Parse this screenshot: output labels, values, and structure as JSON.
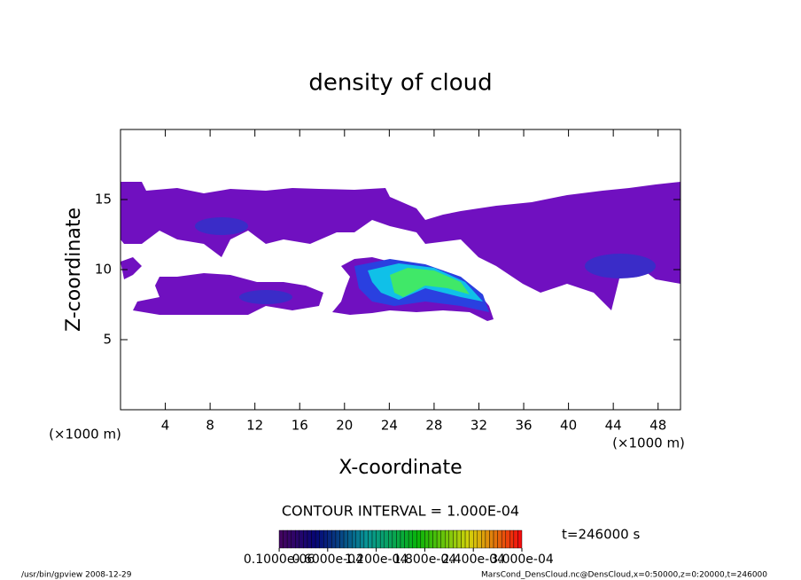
{
  "chart_data": {
    "type": "contour",
    "title": "density of cloud",
    "x_label": "X-coordinate",
    "y_label": "Z-coordinate",
    "x_unit_label": "(×1000 m)",
    "y_unit_label": "(×1000 m)",
    "xlim": [
      0,
      50
    ],
    "xticks": [
      4,
      8,
      12,
      16,
      20,
      24,
      28,
      32,
      36,
      40,
      44,
      48
    ],
    "ylim": [
      0,
      20
    ],
    "yticks": [
      5,
      10,
      15
    ],
    "contour_interval_label": "CONTOUR INTERVAL = 1.000E-04",
    "time_label": "t=246000 s",
    "colorbar": {
      "clim": [
        0,
        0.0003
      ],
      "ticks": [
        {
          "value": 1e-07,
          "label": "0.1000e-06"
        },
        {
          "value": 6e-05,
          "label": "0.6000e-04"
        },
        {
          "value": 0.00012,
          "label": "1.200e-04"
        },
        {
          "value": 0.00018,
          "label": "1.800e-04"
        },
        {
          "value": 0.00024,
          "label": "2.400e-04"
        },
        {
          "value": 0.0003,
          "label": "3.000e-04"
        }
      ]
    }
  },
  "footer": {
    "left": "/usr/bin/gpview  2008-12-29",
    "right": "MarsCond_DensCloud.nc@DensCloud,x=0:50000,z=0:20000,t=246000"
  }
}
